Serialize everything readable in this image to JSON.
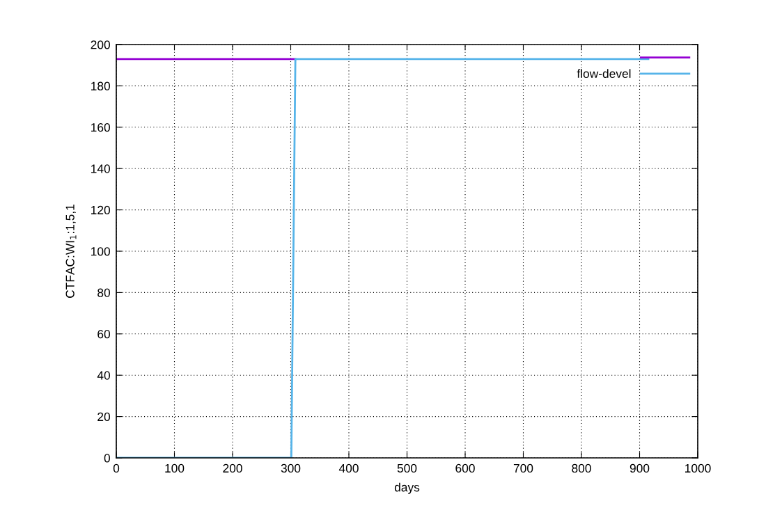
{
  "chart_data": {
    "type": "line",
    "xlabel": "days",
    "ylabel": "CTFAC:WI$_{1}$:1,5,1",
    "xlim": [
      0,
      1000
    ],
    "xticks": [
      0,
      100,
      200,
      300,
      400,
      500,
      600,
      700,
      800,
      900,
      1000
    ],
    "ylim": [
      0,
      200
    ],
    "yticks": [
      0,
      20,
      40,
      60,
      80,
      100,
      120,
      140,
      160,
      180,
      200
    ],
    "grid": true,
    "legend": "top right",
    "line_style": "solid",
    "series": [
      {
        "color": "#9400d3",
        "x": [
          0,
          308
        ],
        "values": [
          193,
          193
        ]
      },
      {
        "name": "flow-devel",
        "color": "#56b4e9",
        "x": [
          0,
          301,
          308,
          915
        ],
        "values": [
          0,
          0,
          193,
          193
        ]
      }
    ]
  }
}
